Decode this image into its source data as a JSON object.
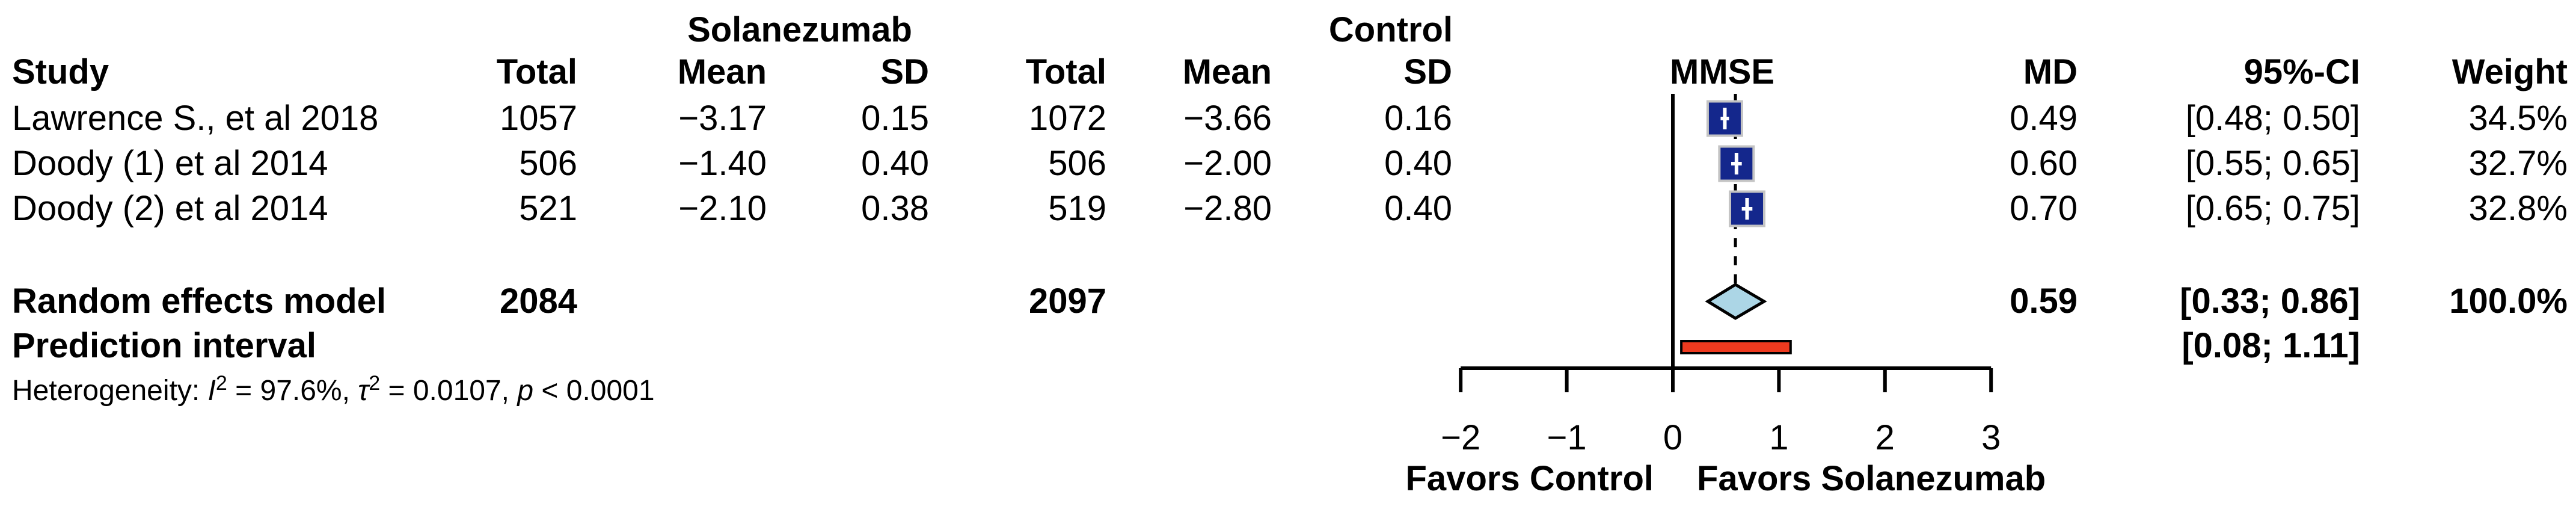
{
  "table": {
    "headers": {
      "study": "Study",
      "solanezumab_group": "Solanezumab",
      "control_group": "Control",
      "total": "Total",
      "mean": "Mean",
      "sd": "SD",
      "plot": "MMSE",
      "md": "MD",
      "ci": "95%-CI",
      "weight": "Weight"
    }
  },
  "chart_data": {
    "type": "forest",
    "outcome_label": "MMSE",
    "effect_measure": "MD",
    "x_axis": {
      "range": [
        -2,
        3
      ],
      "ticks": [
        -2,
        -1,
        0,
        1,
        2,
        3
      ],
      "tick_labels": [
        "−2",
        "−1",
        "0",
        "1",
        "2",
        "3"
      ],
      "zero_reference_line": 0,
      "pooled_dashed_line": 0.59,
      "label_left": "Favors Control",
      "label_right": "Favors Solanezumab"
    },
    "studies": [
      {
        "name": "Lawrence S., et al 2018",
        "sol_total": "1057",
        "sol_mean": "−3.17",
        "sol_sd": "0.15",
        "ctrl_total": "1072",
        "ctrl_mean": "−3.66",
        "ctrl_sd": "0.16",
        "md": 0.49,
        "ci_lower": 0.48,
        "ci_upper": 0.5,
        "md_label": "0.49",
        "ci_label": "[0.48; 0.50]",
        "weight": 34.5,
        "weight_label": "34.5%"
      },
      {
        "name": "Doody (1) et al 2014",
        "sol_total": "506",
        "sol_mean": "−1.40",
        "sol_sd": "0.40",
        "ctrl_total": "506",
        "ctrl_mean": "−2.00",
        "ctrl_sd": "0.40",
        "md": 0.6,
        "ci_lower": 0.55,
        "ci_upper": 0.65,
        "md_label": "0.60",
        "ci_label": "[0.55; 0.65]",
        "weight": 32.7,
        "weight_label": "32.7%"
      },
      {
        "name": "Doody (2) et al 2014",
        "sol_total": "521",
        "sol_mean": "−2.10",
        "sol_sd": "0.38",
        "ctrl_total": "519",
        "ctrl_mean": "−2.80",
        "ctrl_sd": "0.40",
        "md": 0.7,
        "ci_lower": 0.65,
        "ci_upper": 0.75,
        "md_label": "0.70",
        "ci_label": "[0.65; 0.75]",
        "weight": 32.8,
        "weight_label": "32.8%"
      }
    ],
    "pooled": {
      "name": "Random effects model",
      "sol_total": "2084",
      "ctrl_total": "2097",
      "md": 0.59,
      "ci_lower": 0.33,
      "ci_upper": 0.86,
      "md_label": "0.59",
      "ci_label": "[0.33; 0.86]",
      "weight_label": "100.0%"
    },
    "prediction_interval": {
      "name": "Prediction interval",
      "lower": 0.08,
      "upper": 1.11,
      "ci_label": "[0.08; 1.11]"
    },
    "heterogeneity": {
      "prefix": "Heterogeneity: ",
      "i_symbol": "I",
      "i_sup": "2",
      "i_text": " = 97.6%, ",
      "tau_symbol": "τ",
      "tau_sup": "2",
      "tau_text": " = 0.0107, ",
      "p_symbol": "p",
      "p_text": " < 0.0001"
    },
    "colors": {
      "square": "#14278C",
      "square_border": "#c4c4c4",
      "square_marker": "#ffffff",
      "diamond_fill": "#ACD6E6",
      "diamond_border": "#000000",
      "prediction_bar_fill": "#EE3A1F",
      "prediction_bar_border": "#000000",
      "axis": "#000000"
    }
  }
}
